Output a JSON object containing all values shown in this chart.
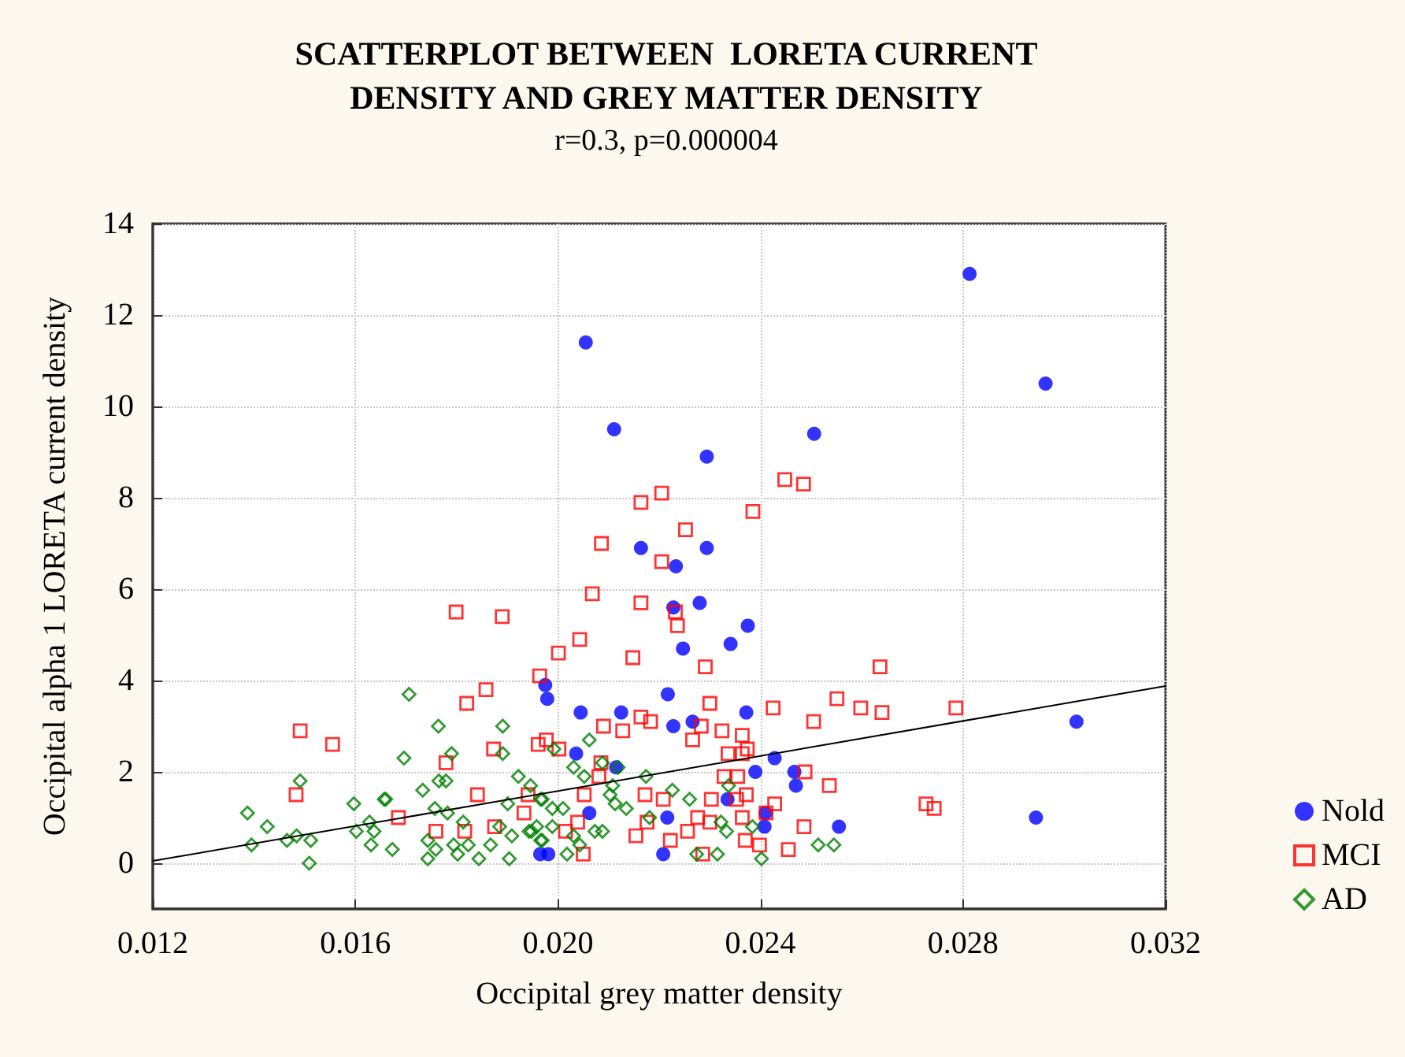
{
  "chart_data": {
    "type": "scatter",
    "title": "SCATTERPLOT BETWEEN  LORETA CURRENT\nDENSITY AND GREY MATTER DENSITY",
    "subtitle": "r=0.3, p=0.000004",
    "xlabel": "Occipital grey matter density",
    "ylabel": "Occipital alpha 1 LORETA current density",
    "xlim": [
      0.012,
      0.032
    ],
    "xticks": [
      0.012,
      0.016,
      {
        "value": 0.02,
        "label": "0.020"
      },
      0.024,
      0.028,
      0.032
    ],
    "ylim": [
      -1,
      14
    ],
    "yticks": [
      0,
      2,
      4,
      6,
      8,
      10,
      12,
      14
    ],
    "grid": true,
    "legend": "right",
    "series": [
      {
        "name": "Nold",
        "color": "#0000ff",
        "marker": "circle",
        "x": [
          0.02055,
          0.02111,
          0.02294,
          0.02813,
          0.02963,
          0.02506,
          0.02294,
          0.02164,
          0.02233,
          0.03024,
          0.02944,
          0.02228,
          0.0228,
          0.02375,
          0.02247,
          0.02341,
          0.01975,
          0.01979,
          0.02217,
          0.02045,
          0.02125,
          0.02372,
          0.02228,
          0.02266,
          0.02036,
          0.02428,
          0.0239,
          0.02467,
          0.0247,
          0.02062,
          0.02216,
          0.02408,
          0.0241,
          0.02555,
          0.01965,
          0.01981,
          0.02208,
          0.02335,
          0.02115
        ],
        "values": [
          11.4,
          9.5,
          8.9,
          12.9,
          10.5,
          9.4,
          6.9,
          6.9,
          6.5,
          3.1,
          1.0,
          5.6,
          5.7,
          5.2,
          4.7,
          4.8,
          3.9,
          3.6,
          3.7,
          3.3,
          3.3,
          3.3,
          3.0,
          3.1,
          2.4,
          2.3,
          2.0,
          2.0,
          1.7,
          1.1,
          1.0,
          0.8,
          1.1,
          0.8,
          0.2,
          0.2,
          0.2,
          1.4,
          2.1
        ]
      },
      {
        "name": "MCI",
        "color": "#ff0000",
        "marker": "square",
        "x": [
          0.02164,
          0.02205,
          0.02086,
          0.02205,
          0.02252,
          0.02068,
          0.02385,
          0.02448,
          0.02485,
          0.02164,
          0.02232,
          0.02236,
          0.02043,
          0.02001,
          0.02148,
          0.02291,
          0.02636,
          0.01964,
          0.023,
          0.02551,
          0.02425,
          0.02598,
          0.0264,
          0.02786,
          0.02505,
          0.0209,
          0.02164,
          0.02183,
          0.02128,
          0.02283,
          0.02324,
          0.02364,
          0.02266,
          0.01977,
          0.01961,
          0.02002,
          0.02374,
          0.02336,
          0.02364,
          0.02085,
          0.02488,
          0.02081,
          0.02328,
          0.02355,
          0.02536,
          0.02052,
          0.02172,
          0.02208,
          0.02303,
          0.02353,
          0.02372,
          0.02428,
          0.02727,
          0.02743,
          0.01933,
          0.02039,
          0.02176,
          0.02276,
          0.023,
          0.02364,
          0.02411,
          0.02486,
          0.02015,
          0.02154,
          0.02222,
          0.02256,
          0.0237,
          0.02398,
          0.02455,
          0.0205,
          0.02286,
          0.01799,
          0.0189,
          0.01858,
          0.0182,
          0.01491,
          0.01555,
          0.01779,
          0.01873,
          0.01483,
          0.01841,
          0.01941,
          0.01685,
          0.01759,
          0.01816,
          0.01875
        ],
        "values": [
          7.9,
          8.1,
          7.0,
          6.6,
          7.3,
          5.9,
          7.7,
          8.4,
          8.3,
          5.7,
          5.5,
          5.2,
          4.9,
          4.6,
          4.5,
          4.3,
          4.3,
          4.1,
          3.5,
          3.6,
          3.4,
          3.4,
          3.3,
          3.4,
          3.1,
          3.0,
          3.2,
          3.1,
          2.9,
          3.0,
          2.9,
          2.8,
          2.7,
          2.7,
          2.6,
          2.5,
          2.5,
          2.4,
          2.4,
          2.2,
          2.0,
          1.9,
          1.9,
          1.9,
          1.7,
          1.5,
          1.5,
          1.4,
          1.4,
          1.4,
          1.5,
          1.3,
          1.3,
          1.2,
          1.1,
          0.9,
          0.9,
          1.0,
          0.9,
          1.0,
          1.1,
          0.8,
          0.7,
          0.6,
          0.5,
          0.7,
          0.5,
          0.4,
          0.3,
          0.2,
          0.2,
          5.5,
          5.4,
          3.8,
          3.5,
          2.9,
          2.6,
          2.2,
          2.5,
          1.5,
          1.5,
          1.5,
          1.0,
          0.7,
          0.7,
          0.8
        ]
      },
      {
        "name": "AD",
        "color": "#008000",
        "marker": "diamond",
        "x": [
          0.01706,
          0.01764,
          0.01891,
          0.01696,
          0.0179,
          0.01891,
          0.01922,
          0.01946,
          0.01491,
          0.01765,
          0.01779,
          0.01733,
          0.01657,
          0.0166,
          0.01966,
          0.01387,
          0.01597,
          0.01628,
          0.01426,
          0.01901,
          0.01757,
          0.01782,
          0.01813,
          0.01637,
          0.01465,
          0.01484,
          0.01512,
          0.01395,
          0.01509,
          0.01602,
          0.01631,
          0.01673,
          0.01743,
          0.01759,
          0.01743,
          0.01794,
          0.01802,
          0.01823,
          0.01844,
          0.01867,
          0.01885,
          0.01909,
          0.01904,
          0.01943,
          0.01958,
          0.01966,
          0.02062,
          0.01992,
          0.02031,
          0.02052,
          0.02088,
          0.02119,
          0.02174,
          0.02108,
          0.02226,
          0.02337,
          0.01969,
          0.02103,
          0.02113,
          0.02135,
          0.0226,
          0.01989,
          0.0201,
          0.02181,
          0.01989,
          0.02031,
          0.02073,
          0.02088,
          0.02043,
          0.02018,
          0.01948,
          0.01969,
          0.02322,
          0.02333,
          0.02384,
          0.02274,
          0.02315,
          0.02402,
          0.02514,
          0.02545
        ],
        "values": [
          3.7,
          3.0,
          3.0,
          2.3,
          2.4,
          2.4,
          1.9,
          1.7,
          1.8,
          1.8,
          1.8,
          1.6,
          1.4,
          1.4,
          1.4,
          1.1,
          1.3,
          0.9,
          0.8,
          1.3,
          1.2,
          1.1,
          0.9,
          0.7,
          0.5,
          0.6,
          0.5,
          0.4,
          0.0,
          0.7,
          0.4,
          0.3,
          0.5,
          0.3,
          0.1,
          0.4,
          0.2,
          0.4,
          0.1,
          0.4,
          0.8,
          0.6,
          0.1,
          0.7,
          0.8,
          0.5,
          2.7,
          2.5,
          2.1,
          1.9,
          2.2,
          2.1,
          1.9,
          1.7,
          1.6,
          1.7,
          1.4,
          1.5,
          1.3,
          1.2,
          1.4,
          1.2,
          1.2,
          1.0,
          0.8,
          0.6,
          0.7,
          0.7,
          0.4,
          0.2,
          0.7,
          0.5,
          0.9,
          0.7,
          0.8,
          0.2,
          0.2,
          0.1,
          0.4,
          0.4
        ]
      },
      {
        "type": "line",
        "color": "#000000",
        "marker": "none",
        "x": [
          0.012,
          0.032
        ],
        "values": [
          0.05,
          3.88
        ]
      }
    ]
  }
}
